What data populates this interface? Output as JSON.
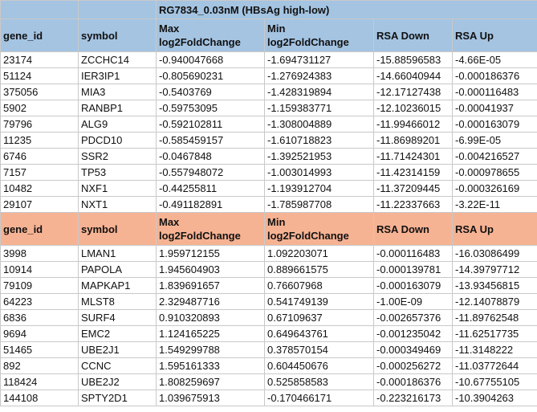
{
  "title_cell": "RG7834_0.03nM (HBsAg high-low)",
  "columns": {
    "gene_id": "gene_id",
    "symbol": "symbol",
    "max_line1": "Max",
    "max_line2": "log2FoldChange",
    "min_line1": "Min",
    "min_line2": "log2FoldChange",
    "rsa_down": "RSA Down",
    "rsa_up": "RSA Up"
  },
  "table_a": [
    {
      "gene_id": "23174",
      "symbol": "ZCCHC14",
      "max": "-0.940047668",
      "min": "-1.694731127",
      "rsa_down": "-15.88596583",
      "rsa_up": "-4.66E-05"
    },
    {
      "gene_id": "51124",
      "symbol": "IER3IP1",
      "max": "-0.805690231",
      "min": "-1.276924383",
      "rsa_down": "-14.66040944",
      "rsa_up": "-0.000186376"
    },
    {
      "gene_id": "375056",
      "symbol": "MIA3",
      "max": "-0.5403769",
      "min": "-1.428319894",
      "rsa_down": "-12.17127438",
      "rsa_up": "-0.000116483"
    },
    {
      "gene_id": "5902",
      "symbol": "RANBP1",
      "max": "-0.59753095",
      "min": "-1.159383771",
      "rsa_down": "-12.10236015",
      "rsa_up": "-0.00041937"
    },
    {
      "gene_id": "79796",
      "symbol": "ALG9",
      "max": "-0.592102811",
      "min": "-1.308004889",
      "rsa_down": "-11.99466012",
      "rsa_up": "-0.000163079"
    },
    {
      "gene_id": "11235",
      "symbol": "PDCD10",
      "max": "-0.585459157",
      "min": "-1.610718823",
      "rsa_down": "-11.86989201",
      "rsa_up": "-6.99E-05"
    },
    {
      "gene_id": "6746",
      "symbol": "SSR2",
      "max": "-0.0467848",
      "min": "-1.392521953",
      "rsa_down": "-11.71424301",
      "rsa_up": "-0.004216527"
    },
    {
      "gene_id": "7157",
      "symbol": "TP53",
      "max": "-0.557948072",
      "min": "-1.003014993",
      "rsa_down": "-11.42314159",
      "rsa_up": "-0.000978655"
    },
    {
      "gene_id": "10482",
      "symbol": "NXF1",
      "max": "-0.44255811",
      "min": "-1.193912704",
      "rsa_down": "-11.37209445",
      "rsa_up": "-0.000326169"
    },
    {
      "gene_id": "29107",
      "symbol": "NXT1",
      "max": "-0.491182891",
      "min": "-1.785987708",
      "rsa_down": "-11.22337663",
      "rsa_up": "-3.22E-11"
    }
  ],
  "table_b": [
    {
      "gene_id": "3998",
      "symbol": "LMAN1",
      "max": "1.959712155",
      "min": "1.092203071",
      "rsa_down": "-0.000116483",
      "rsa_up": "-16.03086499"
    },
    {
      "gene_id": "10914",
      "symbol": "PAPOLA",
      "max": "1.945604903",
      "min": "0.889661575",
      "rsa_down": "-0.000139781",
      "rsa_up": "-14.39797712"
    },
    {
      "gene_id": "79109",
      "symbol": "MAPKAP1",
      "max": "1.839691657",
      "min": "0.76607968",
      "rsa_down": "-0.000163079",
      "rsa_up": "-13.93456815"
    },
    {
      "gene_id": "64223",
      "symbol": "MLST8",
      "max": "2.329487716",
      "min": "0.541749139",
      "rsa_down": "-1.00E-09",
      "rsa_up": "-12.14078879"
    },
    {
      "gene_id": "6836",
      "symbol": "SURF4",
      "max": "0.910320893",
      "min": "0.67109637",
      "rsa_down": "-0.002657376",
      "rsa_up": "-11.89762548"
    },
    {
      "gene_id": "9694",
      "symbol": "EMC2",
      "max": "1.124165225",
      "min": "0.649643761",
      "rsa_down": "-0.001235042",
      "rsa_up": "-11.62517735"
    },
    {
      "gene_id": "51465",
      "symbol": "UBE2J1",
      "max": "1.549299788",
      "min": "0.378570154",
      "rsa_down": "-0.000349469",
      "rsa_up": "-11.3148222"
    },
    {
      "gene_id": "892",
      "symbol": "CCNC",
      "max": "1.595161333",
      "min": "0.604450676",
      "rsa_down": "-0.000256272",
      "rsa_up": "-11.03772644"
    },
    {
      "gene_id": "118424",
      "symbol": "UBE2J2",
      "max": "1.808259697",
      "min": "0.525858583",
      "rsa_down": "-0.000186376",
      "rsa_up": "-10.67755105"
    },
    {
      "gene_id": "144108",
      "symbol": "SPTY2D1",
      "max": "1.039675913",
      "min": "-0.170466171",
      "rsa_down": "-0.223216173",
      "rsa_up": "-10.3904263"
    }
  ]
}
